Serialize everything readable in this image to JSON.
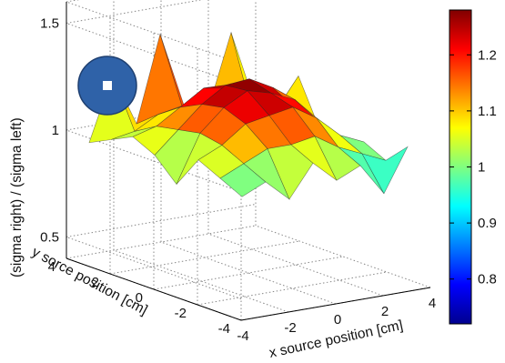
{
  "chart_data": {
    "type": "surface",
    "title": "",
    "xlabel": "x source position [cm]",
    "ylabel": "y sorce position [cm]",
    "zlabel": "(sigma right) / (sigma left)",
    "x_ticks": [
      "-4",
      "-2",
      "0",
      "2",
      "4"
    ],
    "y_ticks": [
      "4",
      "2",
      "0",
      "-2",
      "-4"
    ],
    "z_ticks": [
      "0.5",
      "1",
      "1.5"
    ],
    "xlim": [
      -4,
      4
    ],
    "ylim": [
      -4,
      4
    ],
    "zlim": [
      0.4,
      1.6
    ],
    "grid": true,
    "colormap": "jet",
    "colorbar": {
      "ticks": [
        "1.2",
        "1.1",
        "1",
        "0.9",
        "0.8"
      ],
      "tick_values": [
        1.2,
        1.1,
        1.0,
        0.9,
        0.8
      ],
      "range": [
        0.72,
        1.28
      ]
    },
    "x": [
      -3.5,
      -2.5,
      -1.5,
      -0.5,
      0.5,
      1.5,
      2.5,
      3.5
    ],
    "y": [
      -3.5,
      -2.5,
      -1.5,
      -0.5,
      0.5,
      1.5,
      2.5,
      3.5
    ],
    "z": [
      [
        0.95,
        1.0,
        0.9,
        1.05,
        0.95,
        1.0,
        0.85,
        1.05
      ],
      [
        1.0,
        1.05,
        1.1,
        1.1,
        1.12,
        1.05,
        1.0,
        0.95
      ],
      [
        1.05,
        1.1,
        1.18,
        1.2,
        1.22,
        1.15,
        1.05,
        1.0
      ],
      [
        0.9,
        1.12,
        1.22,
        1.28,
        1.25,
        1.2,
        1.08,
        0.95
      ],
      [
        1.0,
        1.1,
        1.2,
        1.27,
        1.28,
        1.22,
        1.1,
        0.98
      ],
      [
        1.05,
        1.08,
        1.15,
        1.22,
        1.2,
        1.15,
        1.05,
        1.2
      ],
      [
        1.0,
        1.02,
        1.08,
        1.1,
        1.12,
        1.08,
        1.0,
        0.95
      ],
      [
        0.95,
        1.25,
        1.0,
        1.4,
        1.05,
        1.0,
        1.35,
        1.0
      ]
    ],
    "inset_icon": "detector-circle-icon",
    "inset_color": "#2f62a8"
  }
}
